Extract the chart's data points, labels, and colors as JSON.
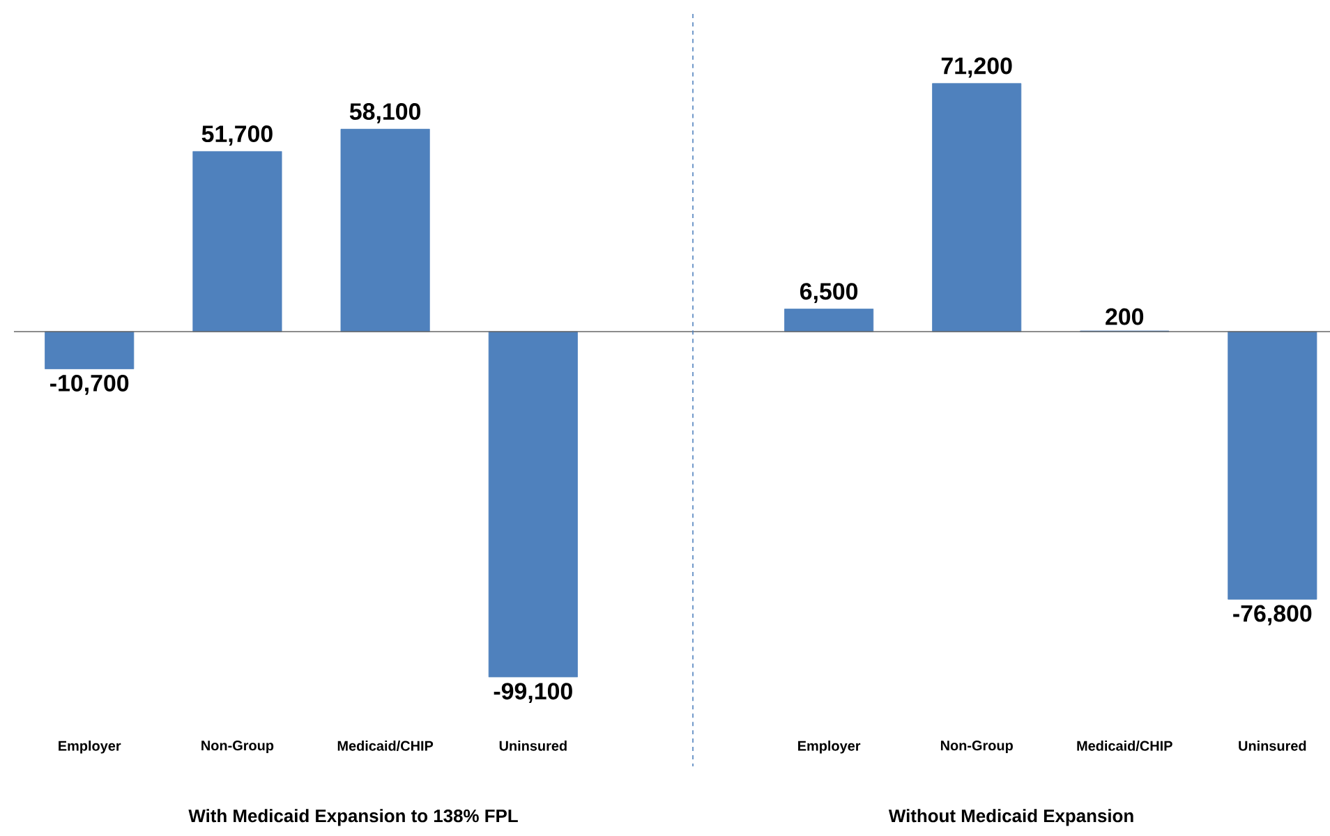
{
  "chart_data": [
    {
      "type": "bar",
      "categories": [
        "Employer",
        "Non-Group",
        "Medicaid/CHIP",
        "Uninsured"
      ],
      "values": [
        -10700,
        51700,
        58100,
        -99100
      ],
      "value_labels": [
        "-10,700",
        "51,700",
        "58,100",
        "-99,100"
      ],
      "color": "#4f81bd",
      "xlabel": "With Medicaid  Expansion  to  138% FPL"
    },
    {
      "type": "bar",
      "categories": [
        "Employer",
        "Non-Group",
        "Medicaid/CHIP",
        "Uninsured"
      ],
      "values": [
        6500,
        71200,
        200,
        -76800
      ],
      "value_labels": [
        "6,500",
        "71,200",
        "200",
        "-76,800"
      ],
      "color": "#4f81bd",
      "xlabel": "Without Medicaid  Expansion"
    }
  ]
}
